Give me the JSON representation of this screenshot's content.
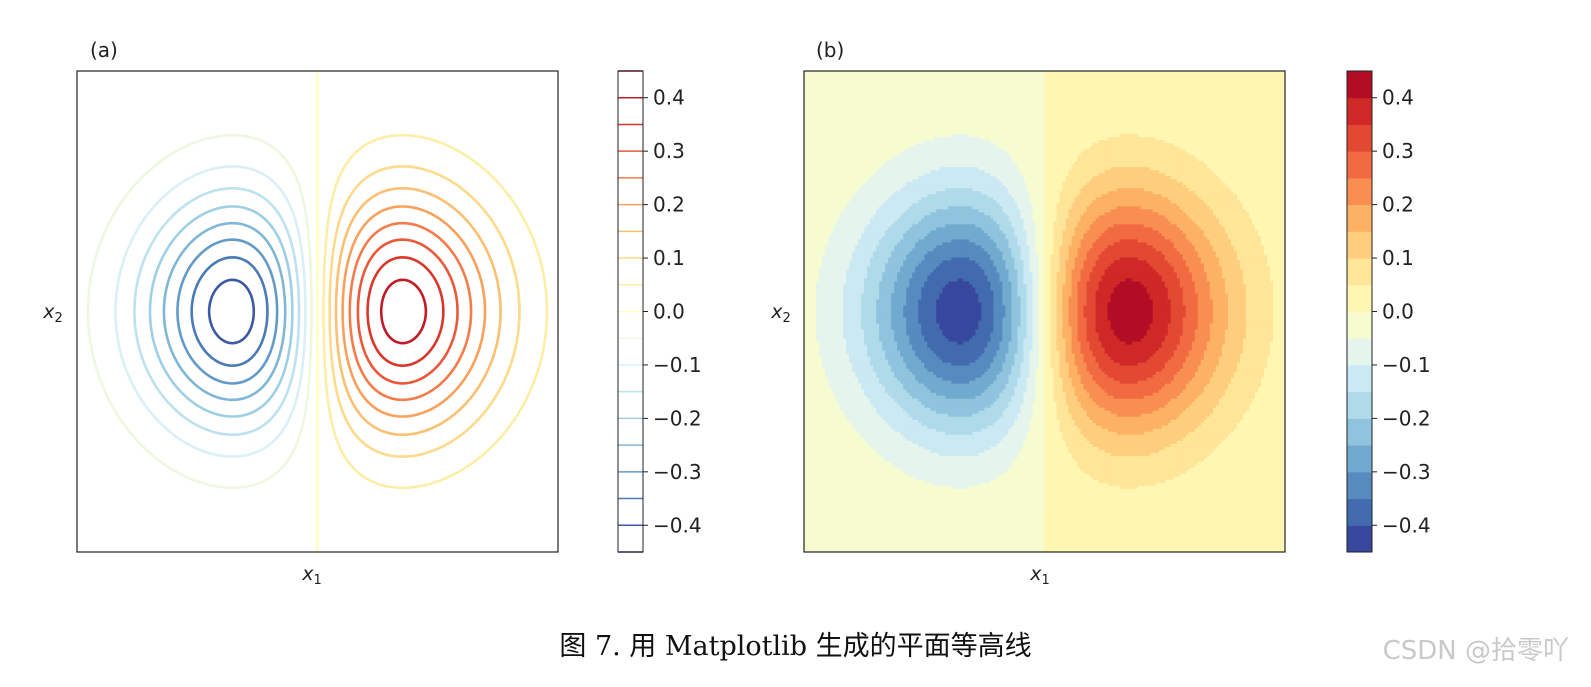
{
  "chart_data": [
    {
      "type": "contour",
      "panel_label": "(a)",
      "xlabel": "x",
      "xlabel_sub": "1",
      "ylabel": "x",
      "ylabel_sub": "2",
      "field": "x1 * exp(-(x1^2 + x2^2))",
      "xlim": [
        -2,
        2
      ],
      "ylim": [
        -2,
        2
      ],
      "x_ticks_shown": false,
      "y_ticks_shown": false,
      "levels": [
        -0.45,
        -0.4,
        -0.35,
        -0.3,
        -0.25,
        -0.2,
        -0.15,
        -0.1,
        -0.05,
        0.0,
        0.05,
        0.1,
        0.15,
        0.2,
        0.25,
        0.3,
        0.35,
        0.4,
        0.45
      ],
      "colormap": "RdYlBu_r",
      "colorbar": {
        "ticks": [
          0.4,
          0.3,
          0.2,
          0.1,
          0.0,
          -0.1,
          -0.2,
          -0.3,
          -0.4
        ],
        "tick_labels": [
          "0.4",
          "0.3",
          "0.2",
          "0.1",
          "0.0",
          "−0.1",
          "−0.2",
          "−0.3",
          "−0.4"
        ],
        "range": [
          -0.45,
          0.45
        ],
        "style": "lines"
      }
    },
    {
      "type": "contourf",
      "panel_label": "(b)",
      "xlabel": "x",
      "xlabel_sub": "1",
      "ylabel": "x",
      "ylabel_sub": "2",
      "field": "x1 * exp(-(x1^2 + x2^2))",
      "xlim": [
        -2,
        2
      ],
      "ylim": [
        -2,
        2
      ],
      "x_ticks_shown": false,
      "y_ticks_shown": false,
      "levels": [
        -0.45,
        -0.4,
        -0.35,
        -0.3,
        -0.25,
        -0.2,
        -0.15,
        -0.1,
        -0.05,
        0.0,
        0.05,
        0.1,
        0.15,
        0.2,
        0.25,
        0.3,
        0.35,
        0.4,
        0.45
      ],
      "colormap": "RdYlBu_r",
      "colorbar": {
        "ticks": [
          0.4,
          0.3,
          0.2,
          0.1,
          0.0,
          -0.1,
          -0.2,
          -0.3,
          -0.4
        ],
        "tick_labels": [
          "0.4",
          "0.3",
          "0.2",
          "0.1",
          "0.0",
          "−0.1",
          "−0.2",
          "−0.3",
          "−0.4"
        ],
        "range": [
          -0.45,
          0.45
        ],
        "style": "filled"
      }
    }
  ],
  "colors": {
    "colormap_stops": [
      "#313695",
      "#4575b4",
      "#74add1",
      "#abd9e9",
      "#e0f3f8",
      "#ffffbf",
      "#fee090",
      "#fdae61",
      "#f46d43",
      "#d73027",
      "#a50026"
    ]
  },
  "caption": "图 7. 用 Matplotlib 生成的平面等高线",
  "watermark": "CSDN @拾零吖"
}
